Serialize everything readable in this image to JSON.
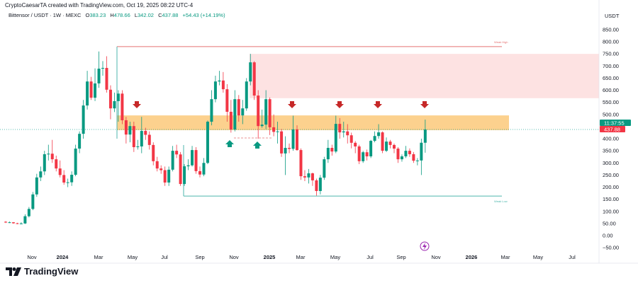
{
  "header": {
    "credit": "CryptoCaesarTA created with TradingView.com, Oct 19, 2025 08:22 UTC-4",
    "symbol": "Bittensor / USDT · 1W · MEXC",
    "open_label": "O",
    "open": "383.23",
    "high_label": "H",
    "high": "478.66",
    "low_label": "L",
    "low": "342.02",
    "close_label": "C",
    "close": "437.88",
    "change": "+54.43 (+14.19%)"
  },
  "price_axis": {
    "currency": "USDT",
    "ticks": [
      "850.00",
      "800.00",
      "750.00",
      "700.00",
      "650.00",
      "600.00",
      "550.00",
      "500.00",
      "450.00",
      "400.00",
      "350.00",
      "300.00",
      "250.00",
      "200.00",
      "150.00",
      "100.00",
      "50.00",
      "0.00",
      "−50.00"
    ],
    "countdown_tag": "11:37:55",
    "price_tag": "437.88"
  },
  "time_axis": {
    "labels": [
      "Nov",
      "2024",
      "Mar",
      "May",
      "Jul",
      "Sep",
      "Nov",
      "2025",
      "Mar",
      "May",
      "Jul",
      "Sep",
      "Nov",
      "2026",
      "Mar",
      "May",
      "Jul"
    ]
  },
  "annotations": {
    "weak_high_label": "Weak High",
    "weak_low_label": "Weak Low"
  },
  "brand": {
    "name": "TradingView"
  },
  "colors": {
    "up": "#089981",
    "down": "#f23645",
    "supply_zone": "#fde2e2",
    "resistance_zone": "#fbc97a",
    "arrow_down": "#c62828",
    "arrow_up": "#089981",
    "weak_high": "#e57373",
    "weak_low": "#4db6ac",
    "lightning": "#9c27b0"
  },
  "chart_data": {
    "type": "candlestick",
    "interval": "1W",
    "ylim": [
      -50,
      850
    ],
    "fields": [
      "open",
      "high",
      "low",
      "close"
    ],
    "candles": [
      [
        57,
        60,
        52,
        55
      ],
      [
        55,
        58,
        52,
        55
      ],
      [
        55,
        56,
        49,
        51
      ],
      [
        51,
        53,
        47,
        49
      ],
      [
        49,
        55,
        47,
        50
      ],
      [
        50,
        88,
        48,
        80
      ],
      [
        80,
        118,
        75,
        110
      ],
      [
        110,
        180,
        105,
        170
      ],
      [
        170,
        255,
        160,
        240
      ],
      [
        240,
        285,
        225,
        265
      ],
      [
        265,
        350,
        250,
        336
      ],
      [
        336,
        375,
        310,
        338
      ],
      [
        338,
        395,
        300,
        315
      ],
      [
        315,
        330,
        265,
        277
      ],
      [
        277,
        310,
        240,
        250
      ],
      [
        250,
        270,
        210,
        219
      ],
      [
        219,
        235,
        200,
        220
      ],
      [
        220,
        265,
        205,
        251
      ],
      [
        251,
        375,
        245,
        359
      ],
      [
        359,
        430,
        340,
        420
      ],
      [
        420,
        560,
        400,
        537
      ],
      [
        537,
        680,
        520,
        636
      ],
      [
        636,
        655,
        560,
        569
      ],
      [
        569,
        690,
        555,
        628
      ],
      [
        628,
        760,
        610,
        689
      ],
      [
        689,
        720,
        660,
        692
      ],
      [
        692,
        740,
        590,
        602
      ],
      [
        602,
        620,
        480,
        525
      ],
      [
        525,
        590,
        510,
        555
      ],
      [
        555,
        600,
        470,
        586
      ],
      [
        586,
        600,
        460,
        476
      ],
      [
        476,
        490,
        380,
        417
      ],
      [
        417,
        470,
        385,
        452
      ],
      [
        452,
        470,
        345,
        365
      ],
      [
        365,
        395,
        355,
        368
      ],
      [
        368,
        490,
        340,
        432
      ],
      [
        432,
        445,
        395,
        416
      ],
      [
        416,
        430,
        355,
        374
      ],
      [
        374,
        385,
        290,
        307
      ],
      [
        307,
        325,
        265,
        277
      ],
      [
        277,
        290,
        255,
        270
      ],
      [
        270,
        285,
        205,
        219
      ],
      [
        219,
        285,
        205,
        272
      ],
      [
        272,
        370,
        265,
        350
      ],
      [
        350,
        375,
        320,
        335
      ],
      [
        335,
        345,
        205,
        213
      ],
      [
        213,
        295,
        205,
        286
      ],
      [
        286,
        315,
        270,
        290
      ],
      [
        290,
        370,
        285,
        353
      ],
      [
        353,
        365,
        255,
        266
      ],
      [
        266,
        285,
        240,
        252
      ],
      [
        252,
        320,
        245,
        300
      ],
      [
        300,
        475,
        295,
        470
      ],
      [
        470,
        600,
        455,
        563
      ],
      [
        563,
        660,
        550,
        636
      ],
      [
        636,
        680,
        620,
        640
      ],
      [
        640,
        675,
        590,
        604
      ],
      [
        604,
        625,
        470,
        511
      ],
      [
        511,
        560,
        425,
        438
      ],
      [
        438,
        600,
        430,
        563
      ],
      [
        563,
        580,
        470,
        496
      ],
      [
        496,
        560,
        460,
        525
      ],
      [
        525,
        650,
        515,
        636
      ],
      [
        636,
        750,
        620,
        715
      ],
      [
        715,
        720,
        560,
        578
      ],
      [
        578,
        600,
        400,
        452
      ],
      [
        452,
        520,
        445,
        458
      ],
      [
        458,
        600,
        440,
        563
      ],
      [
        563,
        570,
        415,
        447
      ],
      [
        447,
        500,
        410,
        428
      ],
      [
        428,
        470,
        380,
        430
      ],
      [
        430,
        440,
        325,
        339
      ],
      [
        339,
        410,
        250,
        362
      ],
      [
        362,
        380,
        340,
        358
      ],
      [
        358,
        495,
        350,
        438
      ],
      [
        438,
        455,
        350,
        353
      ],
      [
        353,
        360,
        230,
        245
      ],
      [
        245,
        270,
        225,
        240
      ],
      [
        240,
        275,
        215,
        257
      ],
      [
        257,
        260,
        205,
        228
      ],
      [
        228,
        235,
        165,
        184
      ],
      [
        184,
        250,
        170,
        239
      ],
      [
        239,
        325,
        230,
        315
      ],
      [
        315,
        395,
        300,
        362
      ],
      [
        362,
        375,
        330,
        347
      ],
      [
        347,
        495,
        340,
        461
      ],
      [
        461,
        485,
        400,
        426
      ],
      [
        426,
        470,
        405,
        430
      ],
      [
        430,
        460,
        380,
        414
      ],
      [
        414,
        425,
        360,
        383
      ],
      [
        383,
        390,
        340,
        368
      ],
      [
        368,
        375,
        295,
        307
      ],
      [
        307,
        350,
        300,
        344
      ],
      [
        344,
        355,
        310,
        327
      ],
      [
        327,
        395,
        320,
        391
      ],
      [
        391,
        430,
        385,
        411
      ],
      [
        411,
        460,
        400,
        426
      ],
      [
        426,
        430,
        340,
        350
      ],
      [
        350,
        405,
        345,
        388
      ],
      [
        388,
        395,
        360,
        374
      ],
      [
        374,
        380,
        340,
        359
      ],
      [
        359,
        365,
        300,
        315
      ],
      [
        315,
        335,
        305,
        327
      ],
      [
        327,
        370,
        320,
        350
      ],
      [
        350,
        360,
        325,
        336
      ],
      [
        336,
        345,
        300,
        309
      ],
      [
        309,
        320,
        290,
        310
      ],
      [
        310,
        400,
        250,
        383.23
      ],
      [
        383.23,
        478.66,
        342.02,
        437.88
      ]
    ],
    "zones": {
      "supply": [
        567,
        750
      ],
      "resistance": [
        435,
        496
      ]
    },
    "levels": {
      "weak_high": 780,
      "weak_low": 163,
      "current_price": 437.88
    },
    "down_arrows_count": 5,
    "up_arrows_count": 2
  }
}
